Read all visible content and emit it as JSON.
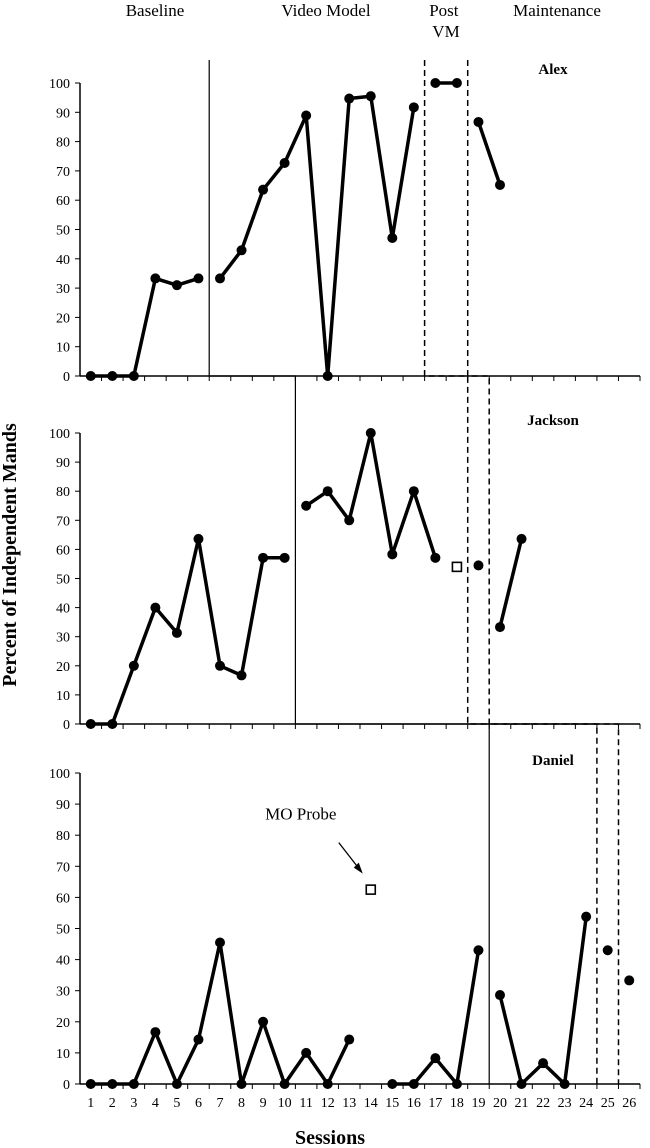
{
  "chart_data": {
    "type": "line",
    "xlabel": "Sessions",
    "ylabel": "Percent of Independent Mands",
    "phases": [
      "Baseline",
      "Video Model",
      "Post VM",
      "Maintenance"
    ],
    "x_ticks": [
      "1",
      "2",
      "3",
      "4",
      "5",
      "6",
      "7",
      "8",
      "9",
      "10",
      "11",
      "12",
      "13",
      "14",
      "15",
      "16",
      "17",
      "18",
      "19",
      "20",
      "21",
      "22",
      "23",
      "24",
      "25",
      "26"
    ],
    "y_ticks": [
      "0",
      "10",
      "20",
      "30",
      "40",
      "50",
      "60",
      "70",
      "80",
      "90",
      "100"
    ],
    "xlim": [
      1,
      26
    ],
    "ylim": [
      0,
      100
    ],
    "panels": [
      {
        "name": "Alex",
        "segments": [
          [
            [
              1,
              0
            ],
            [
              2,
              0
            ],
            [
              3,
              0
            ],
            [
              4,
              33.3
            ],
            [
              5,
              31
            ],
            [
              6,
              33.3
            ]
          ],
          [
            [
              7,
              33.3
            ],
            [
              8,
              42.9
            ],
            [
              9,
              63.6
            ],
            [
              10,
              72.7
            ],
            [
              11,
              88.9
            ],
            [
              12,
              0
            ],
            [
              13,
              94.7
            ],
            [
              14,
              95.5
            ],
            [
              15,
              47.1
            ],
            [
              16,
              91.7
            ]
          ],
          [
            [
              17,
              100
            ],
            [
              18,
              100
            ]
          ],
          [
            [
              19,
              86.7
            ],
            [
              20,
              65.2
            ]
          ]
        ],
        "probes": [],
        "phase_changes": [
          {
            "x": 6.5,
            "style": "solid"
          },
          {
            "x": 16.5,
            "style": "dashed"
          },
          {
            "x": 18.5,
            "style": "dashed"
          }
        ]
      },
      {
        "name": "Jackson",
        "segments": [
          [
            [
              1,
              0
            ],
            [
              2,
              0
            ],
            [
              3,
              20
            ],
            [
              4,
              40
            ],
            [
              5,
              31.3
            ],
            [
              6,
              63.6
            ],
            [
              7,
              20
            ],
            [
              8,
              16.7
            ],
            [
              9,
              57.1
            ],
            [
              10,
              57.1
            ]
          ],
          [
            [
              11,
              75
            ],
            [
              12,
              80
            ],
            [
              13,
              70
            ],
            [
              14,
              100
            ],
            [
              15,
              58.3
            ],
            [
              16,
              80
            ],
            [
              17,
              57.1
            ]
          ],
          [
            [
              19,
              54.5
            ]
          ],
          [
            [
              20,
              33.3
            ],
            [
              21,
              63.6
            ]
          ]
        ],
        "probes": [
          [
            18,
            54
          ]
        ],
        "phase_changes": [
          {
            "x": 10.5,
            "style": "solid"
          },
          {
            "x": 18.5,
            "style": "dashed"
          },
          {
            "x": 19.5,
            "style": "dashed"
          }
        ]
      },
      {
        "name": "Daniel",
        "segments": [
          [
            [
              1,
              0
            ],
            [
              2,
              0
            ],
            [
              3,
              0
            ],
            [
              4,
              16.7
            ],
            [
              5,
              0
            ],
            [
              6,
              14.3
            ],
            [
              7,
              45.5
            ],
            [
              8,
              0
            ],
            [
              9,
              20
            ],
            [
              10,
              0
            ],
            [
              11,
              10
            ],
            [
              12,
              0
            ],
            [
              13,
              14.3
            ]
          ],
          [
            [
              15,
              0
            ],
            [
              16,
              0
            ],
            [
              17,
              8.3
            ],
            [
              18,
              0
            ],
            [
              19,
              43
            ]
          ],
          [
            [
              20,
              28.6
            ],
            [
              21,
              0
            ],
            [
              22,
              6.7
            ],
            [
              23,
              0
            ],
            [
              24,
              53.8
            ]
          ],
          [
            [
              25,
              43
            ]
          ],
          [
            [
              26,
              33.3
            ]
          ]
        ],
        "probes": [
          [
            14,
            62.5
          ]
        ],
        "phase_changes": [
          {
            "x": 19.5,
            "style": "solid"
          },
          {
            "x": 24.5,
            "style": "dashed"
          },
          {
            "x": 25.5,
            "style": "dashed"
          }
        ],
        "annotation": "MO Probe"
      }
    ]
  }
}
